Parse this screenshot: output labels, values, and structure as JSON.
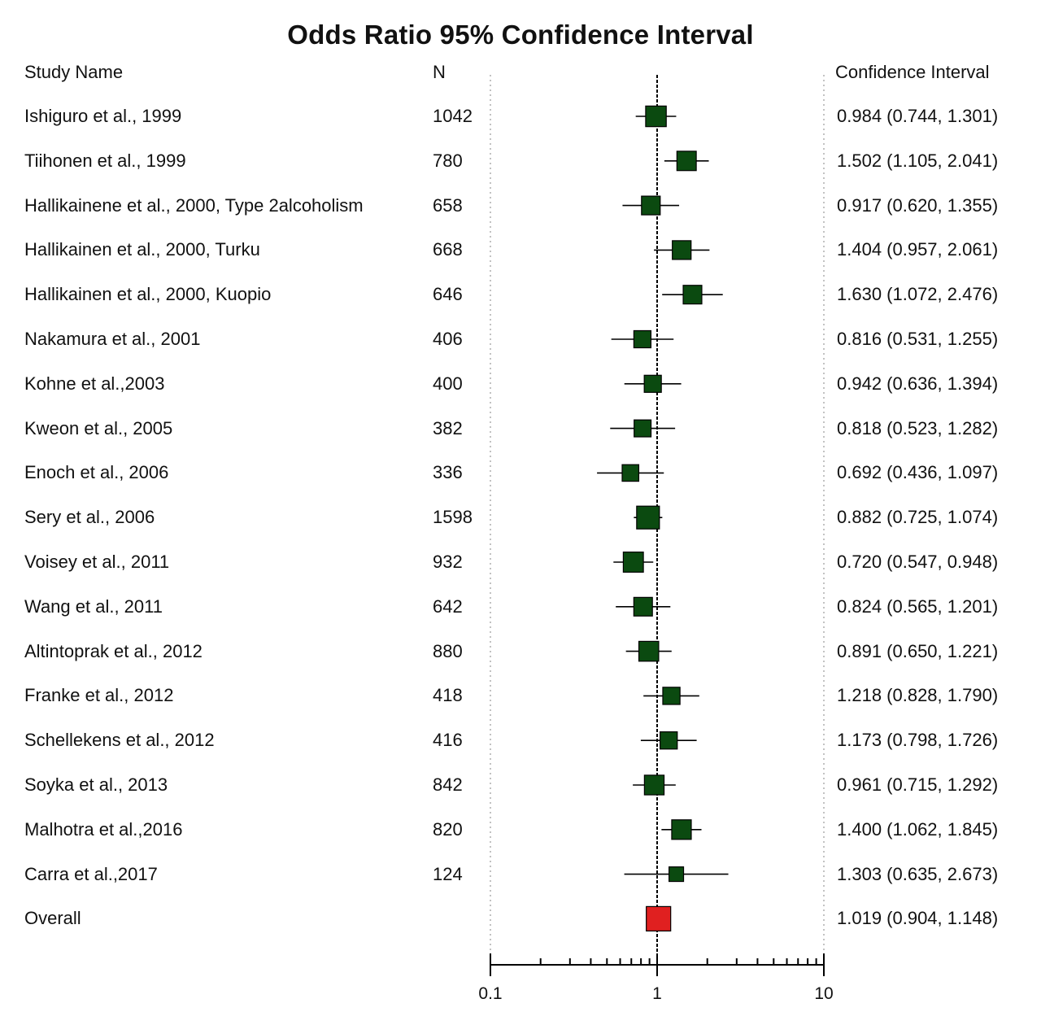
{
  "chart_data": {
    "type": "forest",
    "title": "Odds Ratio 95% Confidence Interval",
    "columns": {
      "study": "Study Name",
      "n": "N",
      "ci": "Confidence Interval"
    },
    "x_scale": "log",
    "xlim": [
      0.1,
      10
    ],
    "x_ticks": [
      "0.1",
      "1",
      "10"
    ],
    "reference_line": 1,
    "colors": {
      "study_marker": "#0b4a10",
      "overall_marker": "#e02020",
      "line": "#000000",
      "grid": "#9a9a9a"
    },
    "studies": [
      {
        "name": "Ishiguro et al., 1999",
        "n": "1042",
        "or": 0.984,
        "lower": 0.744,
        "upper": 1.301,
        "ci_text": "0.984 (0.744, 1.301)"
      },
      {
        "name": "Tiihonen et al., 1999",
        "n": "780",
        "or": 1.502,
        "lower": 1.105,
        "upper": 2.041,
        "ci_text": "1.502 (1.105, 2.041)"
      },
      {
        "name": "Hallikainene et al., 2000, Type 2alcoholism",
        "n": "658",
        "or": 0.917,
        "lower": 0.62,
        "upper": 1.355,
        "ci_text": "0.917 (0.620, 1.355)"
      },
      {
        "name": "Hallikainen et al., 2000, Turku",
        "n": "668",
        "or": 1.404,
        "lower": 0.957,
        "upper": 2.061,
        "ci_text": "1.404 (0.957, 2.061)"
      },
      {
        "name": "Hallikainen et al., 2000, Kuopio",
        "n": "646",
        "or": 1.63,
        "lower": 1.072,
        "upper": 2.476,
        "ci_text": "1.630 (1.072, 2.476)"
      },
      {
        "name": "Nakamura et al., 2001",
        "n": "406",
        "or": 0.816,
        "lower": 0.531,
        "upper": 1.255,
        "ci_text": "0.816 (0.531, 1.255)"
      },
      {
        "name": "Kohne et al.,2003",
        "n": "400",
        "or": 0.942,
        "lower": 0.636,
        "upper": 1.394,
        "ci_text": "0.942 (0.636, 1.394)"
      },
      {
        "name": "Kweon et al., 2005",
        "n": "382",
        "or": 0.818,
        "lower": 0.523,
        "upper": 1.282,
        "ci_text": "0.818 (0.523, 1.282)"
      },
      {
        "name": "Enoch et al., 2006",
        "n": "336",
        "or": 0.692,
        "lower": 0.436,
        "upper": 1.097,
        "ci_text": "0.692 (0.436, 1.097)"
      },
      {
        "name": "Sery et al., 2006",
        "n": "1598",
        "or": 0.882,
        "lower": 0.725,
        "upper": 1.074,
        "ci_text": "0.882 (0.725, 1.074)"
      },
      {
        "name": "Voisey et al., 2011",
        "n": "932",
        "or": 0.72,
        "lower": 0.547,
        "upper": 0.948,
        "ci_text": "0.720 (0.547, 0.948)"
      },
      {
        "name": "Wang et al., 2011",
        "n": "642",
        "or": 0.824,
        "lower": 0.565,
        "upper": 1.201,
        "ci_text": "0.824 (0.565, 1.201)"
      },
      {
        "name": "Altintoprak et al., 2012",
        "n": "880",
        "or": 0.891,
        "lower": 0.65,
        "upper": 1.221,
        "ci_text": "0.891 (0.650, 1.221)"
      },
      {
        "name": "Franke et al., 2012",
        "n": "418",
        "or": 1.218,
        "lower": 0.828,
        "upper": 1.79,
        "ci_text": "1.218 (0.828, 1.790)"
      },
      {
        "name": "Schellekens et al., 2012",
        "n": "416",
        "or": 1.173,
        "lower": 0.798,
        "upper": 1.726,
        "ci_text": "1.173 (0.798, 1.726)"
      },
      {
        "name": "Soyka et al., 2013",
        "n": "842",
        "or": 0.961,
        "lower": 0.715,
        "upper": 1.292,
        "ci_text": "0.961 (0.715, 1.292)"
      },
      {
        "name": "Malhotra et al.,2016",
        "n": "820",
        "or": 1.4,
        "lower": 1.062,
        "upper": 1.845,
        "ci_text": "1.400 (1.062, 1.845)"
      },
      {
        "name": "Carra et al.,2017",
        "n": "124",
        "or": 1.303,
        "lower": 0.635,
        "upper": 2.673,
        "ci_text": "1.303 (0.635, 2.673)"
      }
    ],
    "overall": {
      "name": "Overall",
      "n": "",
      "or": 1.019,
      "lower": 0.904,
      "upper": 1.148,
      "ci_text": "1.019 (0.904, 1.148)"
    }
  }
}
